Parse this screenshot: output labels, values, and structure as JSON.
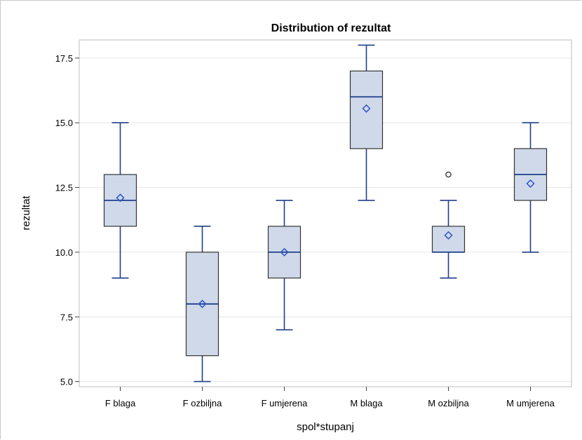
{
  "chart_data": {
    "type": "box",
    "title": "Distribution of rezultat",
    "xlabel": "spol*stupanj",
    "ylabel": "rezultat",
    "ylim": [
      4.8,
      18.2
    ],
    "yticks": [
      5.0,
      7.5,
      10.0,
      12.5,
      15.0,
      17.5
    ],
    "ytick_labels": [
      "5.0",
      "7.5",
      "10.0",
      "12.5",
      "15.0",
      "17.5"
    ],
    "grid": true,
    "colors": {
      "box_fill": "#cfd9ea",
      "box_stroke": "#1f3f8a",
      "whisker": "#1f3f8a",
      "mean_marker": "#2c55c4",
      "outlier": "#333333",
      "grid": "#e6e6e6"
    },
    "categories": [
      "F blaga",
      "F ozbiljna",
      "F umjerena",
      "M blaga",
      "M ozbiljna",
      "M umjerena"
    ],
    "boxes": [
      {
        "category": "F blaga",
        "min": 9,
        "q1": 11,
        "median": 12,
        "q3": 13,
        "max": 15,
        "mean": 12.1,
        "outliers": []
      },
      {
        "category": "F ozbiljna",
        "min": 5,
        "q1": 6,
        "median": 8,
        "q3": 10,
        "max": 11,
        "mean": 8.0,
        "outliers": []
      },
      {
        "category": "F umjerena",
        "min": 7,
        "q1": 9,
        "median": 10,
        "q3": 11,
        "max": 12,
        "mean": 10.0,
        "outliers": []
      },
      {
        "category": "M blaga",
        "min": 12,
        "q1": 14,
        "median": 16,
        "q3": 17,
        "max": 18,
        "mean": 15.55,
        "outliers": []
      },
      {
        "category": "M ozbiljna",
        "min": 9,
        "q1": 10,
        "median": 10,
        "q3": 11,
        "max": 12,
        "mean": 10.65,
        "outliers": [
          13
        ]
      },
      {
        "category": "M umjerena",
        "min": 10,
        "q1": 12,
        "median": 13,
        "q3": 14,
        "max": 15,
        "mean": 12.65,
        "outliers": []
      }
    ]
  }
}
